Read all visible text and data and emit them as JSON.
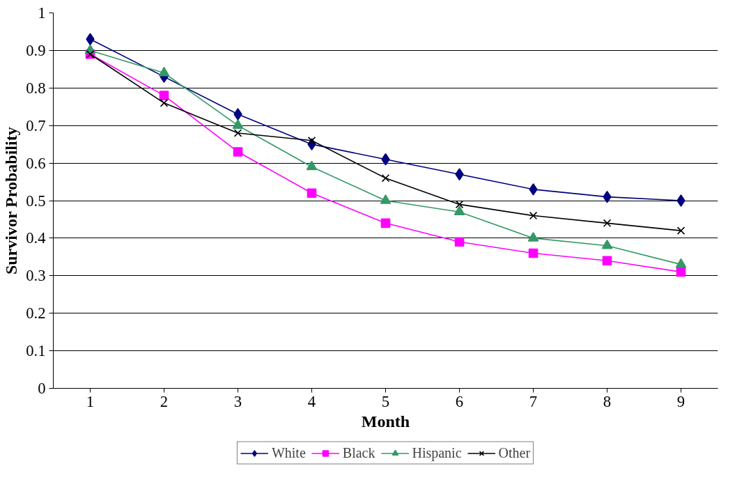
{
  "chart_data": {
    "type": "line",
    "xlabel": "Month",
    "ylabel": "Survivor Probability",
    "categories": [
      "1",
      "2",
      "3",
      "4",
      "5",
      "6",
      "7",
      "8",
      "9"
    ],
    "ylim": [
      0,
      1
    ],
    "yticks": [
      0,
      0.1,
      0.2,
      0.3,
      0.4,
      0.5,
      0.6,
      0.7,
      0.8,
      0.9,
      1
    ],
    "grid": "y",
    "legend": "bottom",
    "line_style": "solid",
    "series": [
      {
        "name": "White",
        "color": "#000080",
        "marker": "diamond",
        "values": [
          0.93,
          0.83,
          0.73,
          0.65,
          0.61,
          0.57,
          0.53,
          0.51,
          0.5
        ]
      },
      {
        "name": "Black",
        "color": "#ff00ff",
        "marker": "square",
        "values": [
          0.89,
          0.78,
          0.63,
          0.52,
          0.44,
          0.39,
          0.36,
          0.34,
          0.31
        ]
      },
      {
        "name": "Hispanic",
        "color": "#339966",
        "marker": "triangle",
        "values": [
          0.9,
          0.84,
          0.7,
          0.59,
          0.5,
          0.47,
          0.4,
          0.38,
          0.33
        ]
      },
      {
        "name": "Other",
        "color": "#000000",
        "marker": "cross",
        "values": [
          0.89,
          0.76,
          0.68,
          0.66,
          0.56,
          0.49,
          0.46,
          0.44,
          0.42
        ]
      }
    ]
  }
}
